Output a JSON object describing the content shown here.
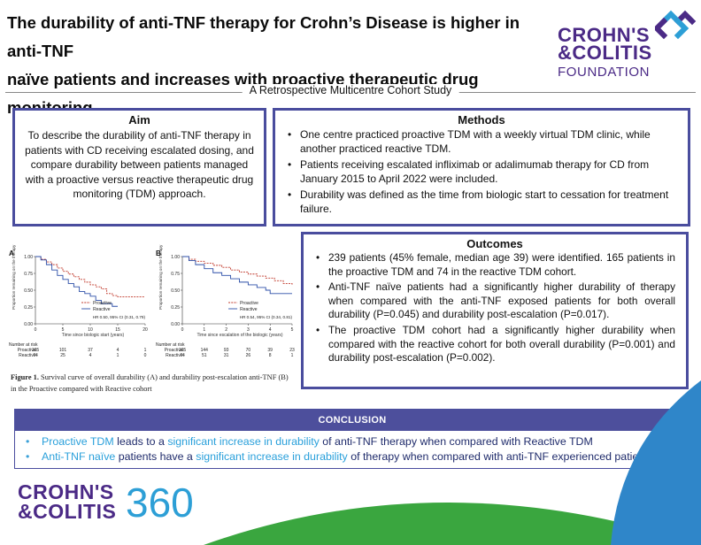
{
  "title": {
    "line1": "The durability of anti-TNF therapy for Crohn’s Disease is higher in anti-TNF",
    "line2": "naïve patients and increases with proactive therapeutic drug monitoring"
  },
  "logo": {
    "line1": "CROHN'S",
    "line2": "&COLITIS",
    "line3": "FOUNDATION",
    "icon": "crohns-colitis-foundation-mark"
  },
  "subtitle": "A Retrospective Multicentre Cohort Study",
  "aim": {
    "heading": "Aim",
    "text": "To describe the durability of anti-TNF therapy in patients with CD receiving escalated dosing, and compare durability between patients managed with a proactive versus reactive therapeutic drug monitoring (TDM) approach."
  },
  "methods": {
    "heading": "Methods",
    "items": [
      "One centre practiced proactive TDM with a weekly virtual TDM clinic, while another practiced reactive TDM.",
      "Patients receiving escalated infliximab or adalimumab therapy for CD from January 2015 to April 2022 were included.",
      "Durability was defined as the time from biologic start to cessation for treatment failure."
    ]
  },
  "outcomes": {
    "heading": "Outcomes",
    "items": [
      "239 patients (45% female, median age 39) were identified. 165 patients in the proactive TDM and 74 in the reactive TDM cohort.",
      "Anti-TNF naïve patients had a significantly higher durability of therapy when compared with the anti-TNF exposed patients for both overall durability (P=0.045) and durability post-escalation (P=0.017).",
      "The proactive TDM cohort had a significantly higher durability when compared with the reactive cohort for both overall durability (P=0.001) and durability post-escalation (P=0.002)."
    ]
  },
  "chart_data": [
    {
      "type": "line",
      "panel": "A",
      "ylabel": "Proportion remaining on the therapy",
      "xlabel": "Time since biologic start (years)",
      "xlim": [
        0,
        20
      ],
      "ylim": [
        0,
        1
      ],
      "x_ticks": [
        "0",
        "5",
        "10",
        "15",
        "20"
      ],
      "y_ticks": [
        "0.00",
        "0.25",
        "0.50",
        "0.75",
        "1.00"
      ],
      "legend_placement": "bottom-right",
      "annotation": "HR 0.50, 95% CI (0.31, 0.79)",
      "series": [
        {
          "name": "Proactive",
          "color": "#c0392b",
          "style": "dashed",
          "x": [
            0,
            1,
            2,
            3,
            4,
            5,
            6,
            7,
            8,
            9,
            10,
            11,
            12,
            13,
            14,
            15,
            16,
            17,
            18,
            20
          ],
          "y": [
            1.0,
            0.96,
            0.92,
            0.88,
            0.83,
            0.78,
            0.74,
            0.7,
            0.66,
            0.62,
            0.58,
            0.55,
            0.52,
            0.45,
            0.42,
            0.4,
            0.4,
            0.4,
            0.4,
            0.4
          ]
        },
        {
          "name": "Reactive",
          "color": "#2c4fa8",
          "style": "solid",
          "x": [
            0,
            1,
            2,
            3,
            4,
            5,
            6,
            7,
            8,
            9,
            10,
            11,
            12,
            14,
            15
          ],
          "y": [
            1.0,
            0.95,
            0.88,
            0.8,
            0.72,
            0.66,
            0.6,
            0.55,
            0.48,
            0.45,
            0.41,
            0.35,
            0.3,
            0.26,
            0.26
          ]
        }
      ],
      "risk_table": {
        "heading": "Number at risk",
        "rows": [
          {
            "label": "Proactive:",
            "values": [
              "165",
              "101",
              "37",
              "4",
              "1"
            ]
          },
          {
            "label": "Reactive:",
            "values": [
              "74",
              "25",
              "4",
              "1",
              "0"
            ]
          }
        ]
      }
    },
    {
      "type": "line",
      "panel": "B",
      "ylabel": "Proportion remaining on the therapy",
      "xlabel": "Time since escalation of the biologic (years)",
      "xlim": [
        0,
        5
      ],
      "ylim": [
        0,
        1
      ],
      "x_ticks": [
        "0",
        "1",
        "2",
        "3",
        "4",
        "5"
      ],
      "y_ticks": [
        "0.00",
        "0.25",
        "0.50",
        "0.75",
        "1.00"
      ],
      "legend_placement": "bottom-right",
      "annotation": "HR 0.54, 95% CI (0.34, 0.81)",
      "series": [
        {
          "name": "Proactive",
          "color": "#c0392b",
          "style": "dashed",
          "x": [
            0,
            0.3,
            0.6,
            1.0,
            1.4,
            1.8,
            2.2,
            2.6,
            3.0,
            3.4,
            3.8,
            4.2,
            4.6,
            5.0
          ],
          "y": [
            1.0,
            0.96,
            0.93,
            0.9,
            0.87,
            0.84,
            0.8,
            0.77,
            0.74,
            0.71,
            0.68,
            0.64,
            0.6,
            0.58
          ]
        },
        {
          "name": "Reactive",
          "color": "#2c4fa8",
          "style": "solid",
          "x": [
            0,
            0.3,
            0.6,
            1.0,
            1.4,
            1.8,
            2.2,
            2.6,
            3.0,
            3.4,
            3.8,
            4.0,
            4.5,
            5.0
          ],
          "y": [
            1.0,
            0.94,
            0.88,
            0.82,
            0.76,
            0.72,
            0.67,
            0.62,
            0.58,
            0.54,
            0.5,
            0.45,
            0.45,
            0.45
          ]
        }
      ],
      "risk_table": {
        "heading": "Number at risk",
        "rows": [
          {
            "label": "Proactive:",
            "values": [
              "165",
              "144",
              "93",
              "70",
              "39",
              "23"
            ]
          },
          {
            "label": "Reactive:",
            "values": [
              "74",
              "51",
              "31",
              "26",
              "8",
              "1"
            ]
          }
        ]
      }
    }
  ],
  "caption": {
    "label": "Figure 1.",
    "text": " Survival curve of overall durability (A) and durability post-escalation anti-TNF (B) in the Proactive compared with Reactive cohort"
  },
  "conclusion": {
    "heading": "CONCLUSION",
    "items": [
      [
        {
          "text": "Proactive TDM",
          "highlight": true
        },
        {
          "text": " leads to a ",
          "highlight": false
        },
        {
          "text": "significant increase in durability",
          "highlight": true
        },
        {
          "text": " of anti-TNF therapy when compared with Reactive TDM",
          "highlight": false
        }
      ],
      [
        {
          "text": "Anti-TNF naïve",
          "highlight": true
        },
        {
          "text": " patients have a ",
          "highlight": false
        },
        {
          "text": "significant increase in durability",
          "highlight": true
        },
        {
          "text": " of therapy when compared with anti-TNF experienced patients",
          "highlight": false
        }
      ]
    ]
  },
  "footer_logo": {
    "line1": "CROHN'S",
    "line2": "&COLITIS",
    "number": "360"
  },
  "colors": {
    "accent_purple": "#4a4d9e",
    "brand_purple": "#4b2a86",
    "brand_blue": "#2d9fd6",
    "decor_green": "#3aa63f",
    "decor_blue": "#2f86c9"
  }
}
